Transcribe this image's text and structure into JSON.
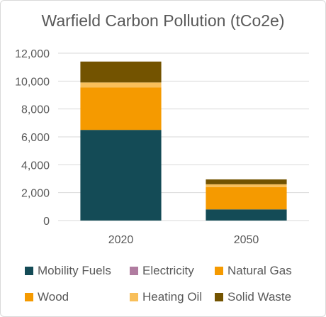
{
  "chart_data": {
    "type": "bar",
    "stacked": true,
    "title": "Warfield Carbon Pollution (tCo2e)",
    "categories": [
      "2020",
      "2050"
    ],
    "ylim": [
      0,
      12000
    ],
    "yticks": [
      "0",
      "2,000",
      "4,000",
      "6,000",
      "8,000",
      "10,000",
      "12,000"
    ],
    "grid": true,
    "legend": "bottom",
    "series": [
      {
        "name": "Mobility Fuels",
        "color": "#144b56",
        "values": [
          6500,
          800
        ]
      },
      {
        "name": "Electricity",
        "color": "#b07ca0",
        "values": [
          0,
          0
        ]
      },
      {
        "name": "Natural Gas",
        "color": "#f59a00",
        "values": [
          3050,
          1600
        ]
      },
      {
        "name": "Wood",
        "color": "#f59a00",
        "values": [
          0,
          0
        ]
      },
      {
        "name": "Heating Oil",
        "color": "#f8bf5a",
        "values": [
          350,
          200
        ]
      },
      {
        "name": "Solid Waste",
        "color": "#735300",
        "values": [
          1500,
          350
        ]
      }
    ]
  }
}
